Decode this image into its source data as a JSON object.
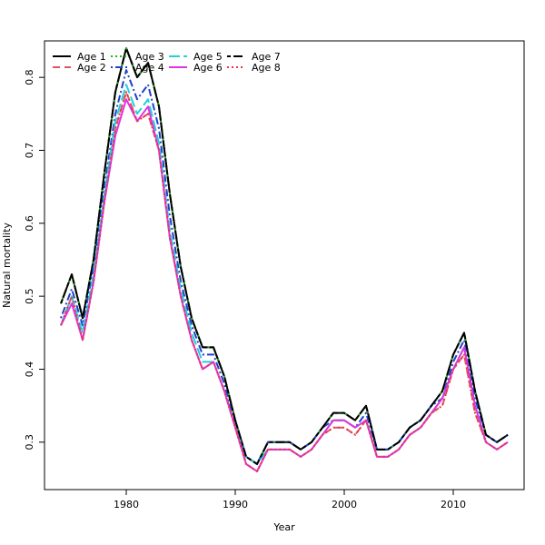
{
  "chart_data": {
    "type": "line",
    "title": "",
    "xlabel": "Year",
    "ylabel": "Natural mortality",
    "xlim": [
      1972.5,
      2016.5
    ],
    "ylim": [
      0.235,
      0.85
    ],
    "x_ticks": [
      1980,
      1990,
      2000,
      2010
    ],
    "y_ticks": [
      0.3,
      0.4,
      0.5,
      0.6,
      0.7,
      0.8
    ],
    "grid": false,
    "legend_position": "top-left",
    "x": [
      1974,
      1975,
      1976,
      1977,
      1978,
      1979,
      1980,
      1981,
      1982,
      1983,
      1984,
      1985,
      1986,
      1987,
      1988,
      1989,
      1990,
      1991,
      1992,
      1993,
      1994,
      1995,
      1996,
      1997,
      1998,
      1999,
      2000,
      2001,
      2002,
      2003,
      2004,
      2005,
      2006,
      2007,
      2008,
      2009,
      2010,
      2011,
      2012,
      2013,
      2014,
      2015
    ],
    "series": [
      {
        "name": "Age 1",
        "color": "#000000",
        "dash": "solid",
        "values": [
          0.49,
          0.53,
          0.47,
          0.55,
          0.67,
          0.78,
          0.84,
          0.8,
          0.82,
          0.76,
          0.64,
          0.54,
          0.47,
          0.43,
          0.43,
          0.39,
          0.33,
          0.28,
          0.27,
          0.3,
          0.3,
          0.3,
          0.29,
          0.3,
          0.32,
          0.34,
          0.34,
          0.33,
          0.35,
          0.29,
          0.29,
          0.3,
          0.32,
          0.33,
          0.35,
          0.37,
          0.42,
          0.45,
          0.37,
          0.31,
          0.3,
          0.31
        ]
      },
      {
        "name": "Age 2",
        "color": "#DF536B",
        "dash": "dashed",
        "values": [
          0.46,
          0.5,
          0.44,
          0.52,
          0.63,
          0.73,
          0.78,
          0.74,
          0.75,
          0.7,
          0.58,
          0.5,
          0.44,
          0.4,
          0.41,
          0.37,
          0.32,
          0.27,
          0.26,
          0.29,
          0.29,
          0.29,
          0.28,
          0.29,
          0.31,
          0.32,
          0.32,
          0.31,
          0.33,
          0.28,
          0.28,
          0.29,
          0.31,
          0.32,
          0.34,
          0.35,
          0.4,
          0.42,
          0.34,
          0.3,
          0.29,
          0.3
        ]
      },
      {
        "name": "Age 3",
        "color": "#22B422",
        "dash": "dotted",
        "values": [
          0.49,
          0.53,
          0.47,
          0.55,
          0.67,
          0.78,
          0.84,
          0.8,
          0.82,
          0.76,
          0.64,
          0.54,
          0.47,
          0.43,
          0.43,
          0.39,
          0.33,
          0.28,
          0.27,
          0.3,
          0.3,
          0.3,
          0.29,
          0.3,
          0.32,
          0.34,
          0.34,
          0.33,
          0.35,
          0.29,
          0.29,
          0.3,
          0.32,
          0.33,
          0.35,
          0.37,
          0.42,
          0.45,
          0.37,
          0.31,
          0.3,
          0.31
        ]
      },
      {
        "name": "Age 4",
        "color": "#2040CC",
        "dash": "dotdash",
        "values": [
          0.47,
          0.51,
          0.46,
          0.54,
          0.65,
          0.75,
          0.81,
          0.77,
          0.79,
          0.73,
          0.61,
          0.52,
          0.46,
          0.42,
          0.42,
          0.38,
          0.32,
          0.28,
          0.27,
          0.3,
          0.3,
          0.3,
          0.29,
          0.3,
          0.32,
          0.33,
          0.33,
          0.32,
          0.34,
          0.29,
          0.29,
          0.3,
          0.32,
          0.33,
          0.35,
          0.36,
          0.41,
          0.44,
          0.36,
          0.31,
          0.3,
          0.31
        ]
      },
      {
        "name": "Age 5",
        "color": "#22D0DA",
        "dash": "longdash",
        "values": [
          0.46,
          0.5,
          0.45,
          0.53,
          0.64,
          0.74,
          0.79,
          0.75,
          0.77,
          0.71,
          0.59,
          0.51,
          0.45,
          0.41,
          0.41,
          0.37,
          0.32,
          0.28,
          0.27,
          0.29,
          0.29,
          0.29,
          0.28,
          0.29,
          0.31,
          0.33,
          0.33,
          0.32,
          0.33,
          0.28,
          0.28,
          0.29,
          0.31,
          0.32,
          0.34,
          0.36,
          0.4,
          0.43,
          0.35,
          0.3,
          0.29,
          0.3
        ]
      },
      {
        "name": "Age 6",
        "color": "#E034E0",
        "dash": "solid",
        "values": [
          0.46,
          0.49,
          0.44,
          0.52,
          0.63,
          0.72,
          0.77,
          0.74,
          0.76,
          0.7,
          0.58,
          0.5,
          0.44,
          0.4,
          0.41,
          0.37,
          0.32,
          0.27,
          0.26,
          0.29,
          0.29,
          0.29,
          0.28,
          0.29,
          0.31,
          0.33,
          0.33,
          0.32,
          0.33,
          0.28,
          0.28,
          0.29,
          0.31,
          0.32,
          0.34,
          0.36,
          0.4,
          0.43,
          0.35,
          0.3,
          0.29,
          0.3
        ]
      },
      {
        "name": "Age 7",
        "color": "#000000",
        "dash": "twodash",
        "values": [
          0.49,
          0.53,
          0.47,
          0.55,
          0.67,
          0.78,
          0.84,
          0.8,
          0.82,
          0.76,
          0.64,
          0.54,
          0.47,
          0.43,
          0.43,
          0.39,
          0.33,
          0.28,
          0.27,
          0.3,
          0.3,
          0.3,
          0.29,
          0.3,
          0.32,
          0.34,
          0.34,
          0.33,
          0.35,
          0.29,
          0.29,
          0.3,
          0.32,
          0.33,
          0.35,
          0.37,
          0.42,
          0.45,
          0.37,
          0.31,
          0.3,
          0.31
        ]
      },
      {
        "name": "Age 8",
        "color": "#E8383D",
        "dash": "dotted",
        "values": [
          0.46,
          0.5,
          0.44,
          0.52,
          0.63,
          0.73,
          0.78,
          0.74,
          0.75,
          0.7,
          0.58,
          0.5,
          0.44,
          0.4,
          0.41,
          0.37,
          0.32,
          0.27,
          0.26,
          0.29,
          0.29,
          0.29,
          0.28,
          0.29,
          0.31,
          0.32,
          0.32,
          0.31,
          0.33,
          0.28,
          0.28,
          0.29,
          0.31,
          0.32,
          0.34,
          0.35,
          0.4,
          0.42,
          0.34,
          0.3,
          0.29,
          0.3
        ]
      }
    ]
  }
}
